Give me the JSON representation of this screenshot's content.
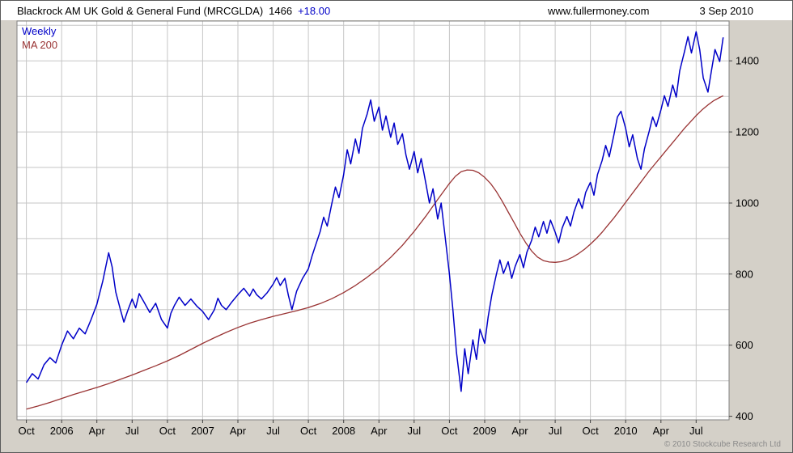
{
  "header": {
    "fund_title": "Blackrock AM UK Gold & General Fund (MRCGLDA)",
    "last_price": "1466",
    "change": "+18.00",
    "website": "www.fullermoney.com",
    "date": "3 Sep 2010"
  },
  "legend": {
    "series1_label": "Weekly",
    "series2_label": "MA 200"
  },
  "footer": {
    "copyright": "© 2010 Stockcube Research Ltd"
  },
  "chart_data": {
    "type": "line",
    "title": "Blackrock AM UK Gold & General Fund (MRCGLDA)",
    "latest_value": 1466,
    "change": "+18.00",
    "x_unit": "months since Oct 2005",
    "xlim": [
      -0.8,
      59.8
    ],
    "ylim": [
      390,
      1512
    ],
    "y_ticks": [
      400,
      600,
      800,
      1000,
      1200,
      1400
    ],
    "grid_interval_y": 100,
    "grid_on": true,
    "legend_position": "top-left",
    "colors": {
      "grid": "#c6c6c6",
      "plot_background": "#ffffff",
      "outer_background": "#d4d0c8",
      "plot_border": "#808080",
      "tick": "#404040",
      "label_text": "#000000"
    },
    "x_ticks": [
      {
        "t": 0,
        "label": "Oct"
      },
      {
        "t": 3,
        "label": "2006"
      },
      {
        "t": 6,
        "label": "Apr"
      },
      {
        "t": 9,
        "label": "Jul"
      },
      {
        "t": 12,
        "label": "Oct"
      },
      {
        "t": 15,
        "label": "2007"
      },
      {
        "t": 18,
        "label": "Apr"
      },
      {
        "t": 21,
        "label": "Jul"
      },
      {
        "t": 24,
        "label": "Oct"
      },
      {
        "t": 27,
        "label": "2008"
      },
      {
        "t": 30,
        "label": "Apr"
      },
      {
        "t": 33,
        "label": "Jul"
      },
      {
        "t": 36,
        "label": "Oct"
      },
      {
        "t": 39,
        "label": "2009"
      },
      {
        "t": 42,
        "label": "Apr"
      },
      {
        "t": 45,
        "label": "Jul"
      },
      {
        "t": 48,
        "label": "Oct"
      },
      {
        "t": 51,
        "label": "2010"
      },
      {
        "t": 54,
        "label": "Apr"
      },
      {
        "t": 57,
        "label": "Jul"
      }
    ],
    "series": [
      {
        "name": "MA 200",
        "color": "#993333",
        "width": 1.3,
        "points": [
          [
            0,
            420
          ],
          [
            1,
            429
          ],
          [
            2,
            439
          ],
          [
            3,
            450
          ],
          [
            4,
            461
          ],
          [
            5,
            471
          ],
          [
            6,
            481
          ],
          [
            7,
            492
          ],
          [
            8,
            504
          ],
          [
            9,
            516
          ],
          [
            10,
            529
          ],
          [
            11,
            542
          ],
          [
            12,
            556
          ],
          [
            13,
            571
          ],
          [
            14,
            588
          ],
          [
            15,
            605
          ],
          [
            16,
            621
          ],
          [
            17,
            636
          ],
          [
            18,
            650
          ],
          [
            19,
            662
          ],
          [
            20,
            672
          ],
          [
            21,
            681
          ],
          [
            22,
            689
          ],
          [
            23,
            697
          ],
          [
            24,
            706
          ],
          [
            25,
            717
          ],
          [
            26,
            731
          ],
          [
            27,
            748
          ],
          [
            28,
            768
          ],
          [
            29,
            791
          ],
          [
            30,
            817
          ],
          [
            31,
            847
          ],
          [
            32,
            881
          ],
          [
            33,
            920
          ],
          [
            34,
            963
          ],
          [
            35,
            1010
          ],
          [
            36,
            1055
          ],
          [
            36.5,
            1075
          ],
          [
            37,
            1088
          ],
          [
            37.5,
            1093
          ],
          [
            38,
            1092
          ],
          [
            38.5,
            1085
          ],
          [
            39,
            1072
          ],
          [
            39.5,
            1055
          ],
          [
            40,
            1032
          ],
          [
            40.5,
            1005
          ],
          [
            41,
            975
          ],
          [
            41.5,
            945
          ],
          [
            42,
            915
          ],
          [
            42.5,
            888
          ],
          [
            43,
            865
          ],
          [
            43.5,
            848
          ],
          [
            44,
            838
          ],
          [
            44.5,
            834
          ],
          [
            45,
            833
          ],
          [
            45.5,
            835
          ],
          [
            46,
            840
          ],
          [
            46.5,
            848
          ],
          [
            47,
            858
          ],
          [
            47.5,
            870
          ],
          [
            48,
            884
          ],
          [
            48.5,
            900
          ],
          [
            49,
            918
          ],
          [
            49.5,
            938
          ],
          [
            50,
            958
          ],
          [
            50.5,
            980
          ],
          [
            51,
            1002
          ],
          [
            51.5,
            1024
          ],
          [
            52,
            1046
          ],
          [
            52.5,
            1068
          ],
          [
            53,
            1090
          ],
          [
            53.5,
            1110
          ],
          [
            54,
            1130
          ],
          [
            54.5,
            1150
          ],
          [
            55,
            1170
          ],
          [
            55.5,
            1190
          ],
          [
            56,
            1210
          ],
          [
            56.5,
            1228
          ],
          [
            57,
            1246
          ],
          [
            57.5,
            1262
          ],
          [
            58,
            1276
          ],
          [
            58.5,
            1288
          ],
          [
            59,
            1297
          ],
          [
            59.3,
            1302
          ]
        ]
      },
      {
        "name": "Weekly",
        "color": "#0000c8",
        "width": 1.5,
        "points": [
          [
            0,
            495
          ],
          [
            0.5,
            520
          ],
          [
            1,
            505
          ],
          [
            1.5,
            545
          ],
          [
            2,
            565
          ],
          [
            2.5,
            550
          ],
          [
            3,
            600
          ],
          [
            3.5,
            640
          ],
          [
            4,
            618
          ],
          [
            4.5,
            648
          ],
          [
            5,
            632
          ],
          [
            5.5,
            672
          ],
          [
            6,
            715
          ],
          [
            6.5,
            780
          ],
          [
            7,
            860
          ],
          [
            7.3,
            820
          ],
          [
            7.6,
            750
          ],
          [
            8,
            700
          ],
          [
            8.3,
            665
          ],
          [
            8.6,
            695
          ],
          [
            9,
            730
          ],
          [
            9.3,
            705
          ],
          [
            9.6,
            745
          ],
          [
            10,
            722
          ],
          [
            10.5,
            692
          ],
          [
            11,
            718
          ],
          [
            11.5,
            672
          ],
          [
            12,
            648
          ],
          [
            12.3,
            690
          ],
          [
            12.6,
            712
          ],
          [
            13,
            735
          ],
          [
            13.5,
            712
          ],
          [
            14,
            730
          ],
          [
            14.5,
            710
          ],
          [
            15,
            695
          ],
          [
            15.5,
            672
          ],
          [
            16,
            700
          ],
          [
            16.3,
            732
          ],
          [
            16.6,
            712
          ],
          [
            17,
            700
          ],
          [
            17.5,
            722
          ],
          [
            18,
            742
          ],
          [
            18.5,
            760
          ],
          [
            19,
            738
          ],
          [
            19.3,
            758
          ],
          [
            19.6,
            742
          ],
          [
            20,
            730
          ],
          [
            20.5,
            748
          ],
          [
            21,
            772
          ],
          [
            21.3,
            790
          ],
          [
            21.6,
            768
          ],
          [
            22,
            788
          ],
          [
            22.3,
            740
          ],
          [
            22.6,
            700
          ],
          [
            23,
            752
          ],
          [
            23.5,
            788
          ],
          [
            24,
            815
          ],
          [
            24.3,
            850
          ],
          [
            24.6,
            880
          ],
          [
            25,
            920
          ],
          [
            25.3,
            960
          ],
          [
            25.6,
            935
          ],
          [
            26,
            1000
          ],
          [
            26.3,
            1045
          ],
          [
            26.6,
            1015
          ],
          [
            27,
            1080
          ],
          [
            27.3,
            1150
          ],
          [
            27.6,
            1110
          ],
          [
            28,
            1180
          ],
          [
            28.3,
            1140
          ],
          [
            28.6,
            1210
          ],
          [
            29,
            1250
          ],
          [
            29.3,
            1290
          ],
          [
            29.6,
            1230
          ],
          [
            30,
            1270
          ],
          [
            30.3,
            1205
          ],
          [
            30.6,
            1245
          ],
          [
            31,
            1185
          ],
          [
            31.3,
            1225
          ],
          [
            31.6,
            1165
          ],
          [
            32,
            1195
          ],
          [
            32.3,
            1135
          ],
          [
            32.6,
            1095
          ],
          [
            33,
            1145
          ],
          [
            33.3,
            1085
          ],
          [
            33.6,
            1125
          ],
          [
            34,
            1055
          ],
          [
            34.3,
            1000
          ],
          [
            34.6,
            1040
          ],
          [
            35,
            955
          ],
          [
            35.3,
            1000
          ],
          [
            35.6,
            915
          ],
          [
            36,
            800
          ],
          [
            36.3,
            700
          ],
          [
            36.6,
            580
          ],
          [
            37,
            470
          ],
          [
            37.3,
            590
          ],
          [
            37.6,
            520
          ],
          [
            38,
            615
          ],
          [
            38.3,
            560
          ],
          [
            38.6,
            645
          ],
          [
            39,
            605
          ],
          [
            39.3,
            680
          ],
          [
            39.6,
            740
          ],
          [
            40,
            800
          ],
          [
            40.3,
            840
          ],
          [
            40.6,
            802
          ],
          [
            41,
            835
          ],
          [
            41.3,
            788
          ],
          [
            41.6,
            822
          ],
          [
            42,
            855
          ],
          [
            42.3,
            818
          ],
          [
            42.6,
            862
          ],
          [
            43,
            895
          ],
          [
            43.3,
            932
          ],
          [
            43.6,
            905
          ],
          [
            44,
            948
          ],
          [
            44.3,
            915
          ],
          [
            44.6,
            952
          ],
          [
            45,
            918
          ],
          [
            45.3,
            888
          ],
          [
            45.6,
            930
          ],
          [
            46,
            962
          ],
          [
            46.3,
            935
          ],
          [
            46.6,
            975
          ],
          [
            47,
            1012
          ],
          [
            47.3,
            985
          ],
          [
            47.6,
            1030
          ],
          [
            48,
            1058
          ],
          [
            48.3,
            1022
          ],
          [
            48.6,
            1080
          ],
          [
            49,
            1120
          ],
          [
            49.3,
            1162
          ],
          [
            49.6,
            1130
          ],
          [
            50,
            1192
          ],
          [
            50.3,
            1242
          ],
          [
            50.6,
            1258
          ],
          [
            51,
            1210
          ],
          [
            51.3,
            1158
          ],
          [
            51.6,
            1192
          ],
          [
            52,
            1125
          ],
          [
            52.3,
            1095
          ],
          [
            52.6,
            1152
          ],
          [
            53,
            1202
          ],
          [
            53.3,
            1242
          ],
          [
            53.6,
            1215
          ],
          [
            54,
            1262
          ],
          [
            54.3,
            1302
          ],
          [
            54.6,
            1272
          ],
          [
            55,
            1332
          ],
          [
            55.3,
            1298
          ],
          [
            55.6,
            1372
          ],
          [
            56,
            1425
          ],
          [
            56.3,
            1468
          ],
          [
            56.6,
            1422
          ],
          [
            57,
            1482
          ],
          [
            57.3,
            1432
          ],
          [
            57.6,
            1352
          ],
          [
            58,
            1312
          ],
          [
            58.3,
            1372
          ],
          [
            58.6,
            1432
          ],
          [
            59,
            1398
          ],
          [
            59.3,
            1466
          ]
        ]
      }
    ]
  }
}
